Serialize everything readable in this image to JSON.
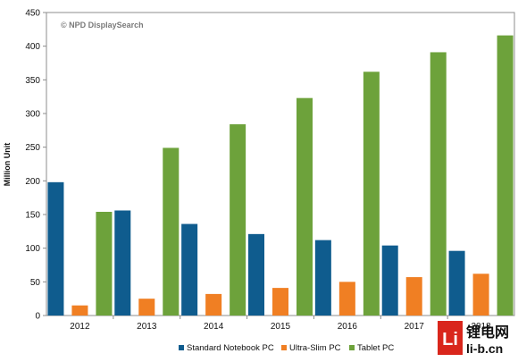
{
  "chart_data": {
    "type": "bar",
    "title": "",
    "watermark": "© NPD DisplaySearch",
    "xlabel": "",
    "ylabel": "Million Unit",
    "ylim": [
      0,
      450
    ],
    "yticks": [
      0,
      50,
      100,
      150,
      200,
      250,
      300,
      350,
      400,
      450
    ],
    "categories": [
      "2012",
      "2013",
      "2014",
      "2015",
      "2016",
      "2017",
      "2018"
    ],
    "series": [
      {
        "name": "Standard Notebook PC",
        "color": "#0F5C8E",
        "values": [
          198,
          156,
          136,
          121,
          112,
          104,
          96
        ]
      },
      {
        "name": "Ultra-Slim PC",
        "color": "#F07F23",
        "values": [
          15,
          25,
          32,
          41,
          50,
          57,
          62
        ]
      },
      {
        "name": "Tablet PC",
        "color": "#6DA23B",
        "values": [
          154,
          249,
          284,
          323,
          362,
          391,
          416
        ]
      }
    ],
    "grid": false,
    "legend_position": "bottom"
  },
  "logo": {
    "main_text": "锂电网",
    "sub_text": "li-b.cn",
    "mark": "Li",
    "accent_color": "#D9261C"
  }
}
